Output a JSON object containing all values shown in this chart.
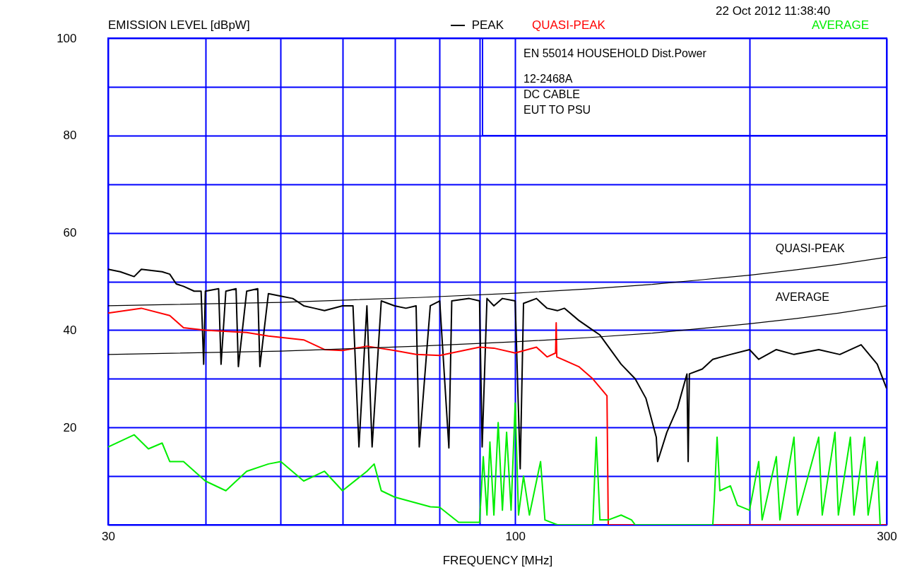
{
  "chart_data": {
    "type": "line",
    "xlabel": "FREQUENCY [MHz]",
    "ylabel": "EMISSION LEVEL [dBpW]",
    "annotations": [
      "22 Oct 2012   11:38:40",
      "EN 55014 HOUSEHOLD Dist.Power",
      "12-2468A",
      "DC CABLE",
      "EUT TO PSU"
    ],
    "log": "x",
    "grid": true,
    "legend": "top",
    "xlim": [
      30,
      300
    ],
    "xticks": [
      30,
      {
        "value": 40,
        "label": null
      },
      {
        "value": 50,
        "label": null
      },
      {
        "value": 60,
        "label": null
      },
      {
        "value": 70,
        "label": null
      },
      {
        "value": 80,
        "label": null
      },
      {
        "value": 90,
        "label": null
      },
      100,
      {
        "value": 200,
        "label": null
      },
      300
    ],
    "ylim": [
      0,
      100
    ],
    "yticks": [
      {
        "value": 0,
        "label": null
      },
      {
        "value": 10,
        "label": null
      },
      20,
      {
        "value": 30,
        "label": null
      },
      40,
      {
        "value": 50,
        "label": null
      },
      60,
      {
        "value": 70,
        "label": null
      },
      80,
      {
        "value": 90,
        "label": null
      },
      100
    ],
    "series": [
      {
        "name": "PEAK",
        "color": "#000000",
        "x": [
          30,
          31.1,
          32.4,
          33.1,
          35.2,
          36.0,
          36.7,
          37.5,
          38.7,
          39.5,
          39.8,
          40.0,
          41.6,
          41.9,
          42.5,
          43.8,
          44.1,
          45.2,
          46.7,
          47.0,
          48.2,
          50,
          51.8,
          53.5,
          55.2,
          56.9,
          60,
          61.9,
          63,
          64.5,
          65.5,
          67.3,
          70,
          72.4,
          74.6,
          75.3,
          77.8,
          80,
          82.2,
          82.9,
          87.3,
          90,
          90.7,
          92,
          93.9,
          96.3,
          100,
          101.5,
          102.5,
          106.5,
          109.9,
          113.3,
          115.7,
          120.7,
          125.8,
          128.5,
          131.2,
          136.8,
          142.6,
          147.2,
          151.8,
          152.4,
          156.6,
          161.6,
          166.2,
          166.8,
          167.4,
          173.9,
          179.4,
          189,
          200,
          205.5,
          216.5,
          228.1,
          245.4,
          261.2,
          278.2,
          291.8,
          300
        ],
        "values": [
          52.5,
          52,
          51,
          52.5,
          52,
          51.5,
          49.5,
          49,
          48,
          48,
          33,
          48,
          48.5,
          33,
          48,
          48.5,
          32.5,
          48,
          48.5,
          32.5,
          47.5,
          47,
          46.5,
          45,
          44.5,
          44,
          45,
          45,
          16,
          45,
          16,
          46,
          45,
          44.5,
          45,
          16,
          45,
          46,
          15.8,
          46,
          46.5,
          46,
          16,
          46.5,
          45,
          46.5,
          46,
          11.5,
          45.5,
          46.5,
          44.5,
          44,
          44.5,
          42,
          40,
          39,
          37,
          33,
          30,
          26,
          18,
          13,
          19,
          24,
          31,
          13,
          31,
          32,
          34,
          35,
          36,
          34,
          36,
          35,
          36,
          35,
          37,
          33,
          28
        ]
      },
      {
        "name": "QUASI-PEAK",
        "color": "#ff0000",
        "x": [
          30,
          33.1,
          36.0,
          37.5,
          40,
          45.2,
          48.2,
          53.5,
          56.9,
          60,
          64.5,
          70,
          74.6,
          80,
          90,
          93.9,
          100,
          106.5,
          109.9,
          112.7,
          112.9,
          113.1,
          120.7,
          125.8,
          131.2,
          131.7,
          300
        ],
        "values": [
          43.5,
          44.5,
          43,
          40.5,
          40,
          39.5,
          38.8,
          38,
          36,
          35.8,
          36.7,
          35.8,
          35,
          34.8,
          36.5,
          36.3,
          35.3,
          36.5,
          34.5,
          35.3,
          41.5,
          34.5,
          32.5,
          30,
          26.5,
          0,
          0
        ]
      },
      {
        "name": "AVERAGE",
        "color": "#00ee00",
        "x": [
          30,
          32.4,
          33.8,
          35.2,
          36,
          37.5,
          40,
          42.5,
          45.2,
          48.2,
          50,
          53.5,
          56.9,
          60,
          64.5,
          65.9,
          67.3,
          70,
          77.8,
          80,
          84.6,
          90,
          91,
          92,
          92.8,
          93.9,
          95.1,
          96.3,
          97.5,
          98.8,
          100,
          101,
          102.5,
          104.3,
          107.8,
          109.2,
          113.3,
          120.7,
          125.8,
          127.1,
          128.5,
          131.7,
          136.8,
          141.1,
          142.6,
          179.4,
          180.2,
          181.7,
          183.2,
          189,
          193,
          200,
          205.5,
          207.6,
          216.5,
          218.8,
          228.1,
          230.5,
          245.4,
          248,
          257.5,
          260.1,
          269.5,
          272.4,
          281.1,
          284,
          291.8,
          294.3
        ],
        "values": [
          16,
          18.5,
          15.6,
          16.8,
          13,
          13,
          9,
          7,
          11,
          12.5,
          13,
          9,
          11,
          7,
          11,
          12.5,
          7,
          5.7,
          3.7,
          3.6,
          0.5,
          0.5,
          14,
          2,
          17,
          2,
          21,
          3,
          19,
          3,
          25,
          2,
          10,
          2,
          13,
          1,
          0,
          0,
          0,
          18,
          1,
          1,
          2,
          1,
          0,
          0,
          5,
          18,
          7,
          8,
          4,
          3,
          13,
          1,
          14,
          1,
          18,
          2,
          18,
          2,
          19,
          2,
          18,
          2,
          18,
          2,
          13,
          0
        ]
      },
      {
        "name": "QUASI-PEAK",
        "color": "#000000",
        "x": [
          30,
          50,
          75,
          100,
          125,
          150,
          175,
          200,
          230,
          260,
          300
        ],
        "values": [
          45,
          45.7,
          46.7,
          47.6,
          48.5,
          49.4,
          50.4,
          51.3,
          52.4,
          53.5,
          55
        ]
      },
      {
        "name": "AVERAGE",
        "color": "#000000",
        "x": [
          30,
          50,
          75,
          100,
          125,
          150,
          175,
          200,
          230,
          260,
          300
        ],
        "values": [
          35,
          35.7,
          36.7,
          37.6,
          38.5,
          39.4,
          40.4,
          41.3,
          42.4,
          43.5,
          45
        ]
      }
    ]
  }
}
